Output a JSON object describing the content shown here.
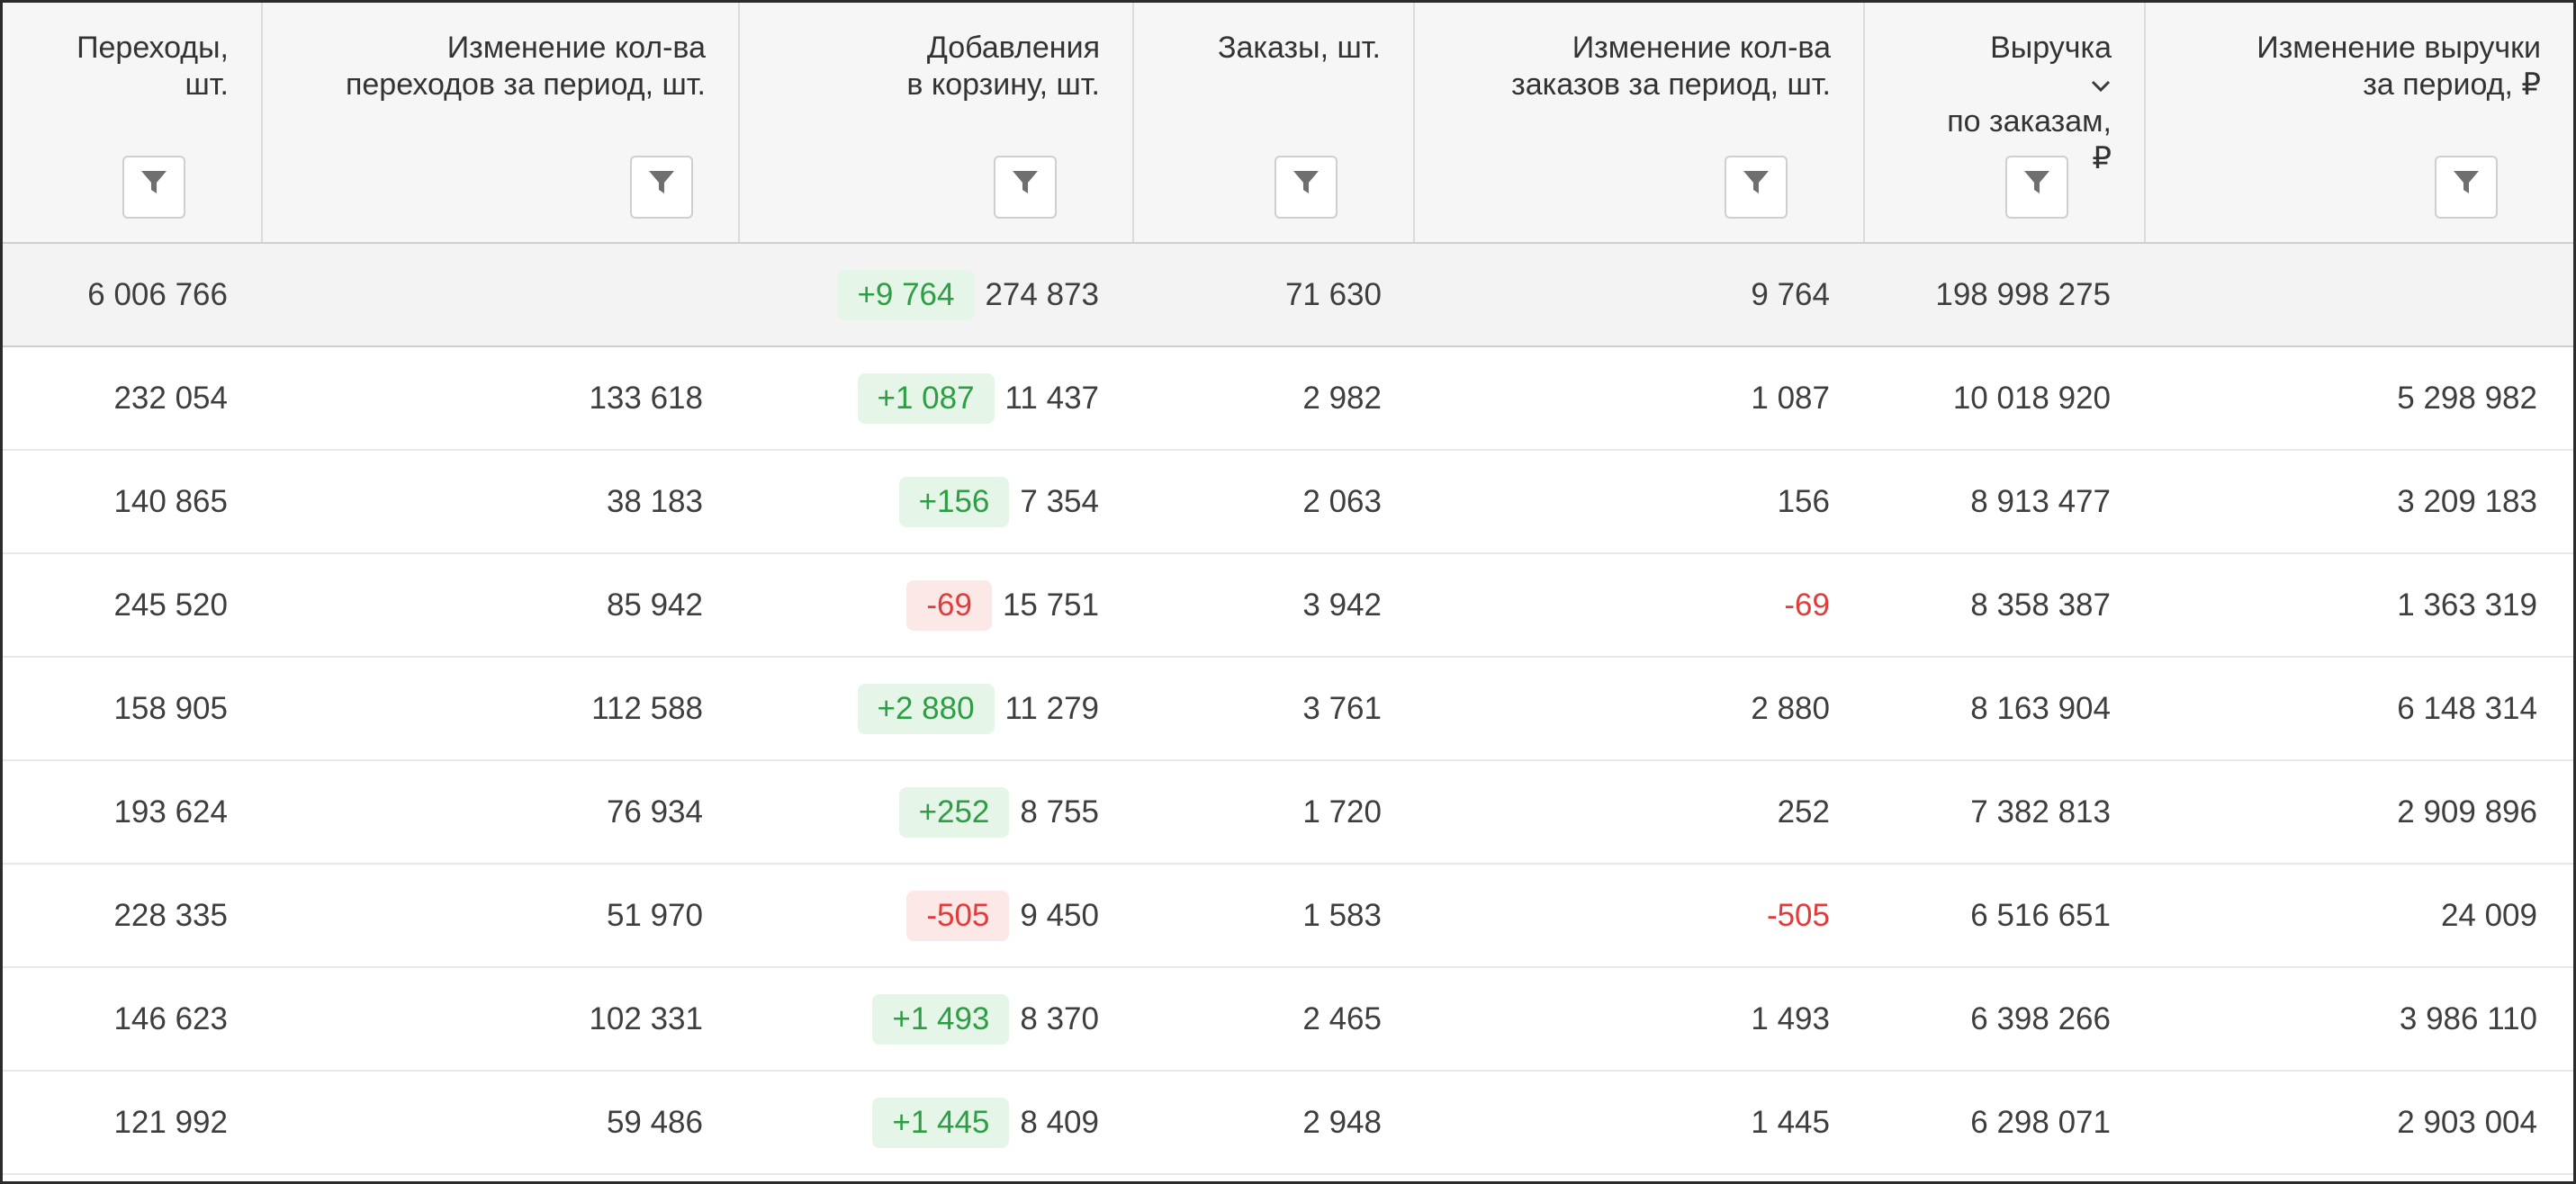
{
  "columns": [
    {
      "key": "visits",
      "lines": [
        "Переходы,",
        "шт."
      ],
      "sorted": false
    },
    {
      "key": "visits_change",
      "lines": [
        "Изменение кол-ва",
        "переходов за период, шт."
      ],
      "sorted": false
    },
    {
      "key": "cart_adds",
      "lines": [
        "Добавления",
        "в корзину, шт."
      ],
      "sorted": false
    },
    {
      "key": "orders",
      "lines": [
        "Заказы, шт."
      ],
      "sorted": false
    },
    {
      "key": "orders_change",
      "lines": [
        "Изменение кол-ва",
        "заказов за период, шт."
      ],
      "sorted": false
    },
    {
      "key": "revenue",
      "lines": [
        "Выручка",
        "по заказам,",
        "₽"
      ],
      "sorted": true
    },
    {
      "key": "revenue_change",
      "lines": [
        "Изменение выручки",
        "за период, ₽"
      ],
      "sorted": false
    }
  ],
  "icons": {
    "filter": "filter-icon",
    "sort": "chevron-down-icon"
  },
  "colors": {
    "positive": "#2e9e45",
    "positive_bg": "#e5f5e8",
    "negative": "#e23b3b",
    "negative_bg": "#fde8e8"
  },
  "total": {
    "visits": "6 006 766",
    "visits_change": "",
    "cart_badge": "+9 764",
    "cart_badge_type": "pos",
    "cart_adds": "274 873",
    "orders": "71 630",
    "orders_change": "9 764",
    "revenue": "198 998 275",
    "revenue_change": ""
  },
  "rows": [
    {
      "visits": "232 054",
      "visits_change": "133 618",
      "cart_badge": "+1 087",
      "cart_badge_type": "pos",
      "cart_adds": "11 437",
      "orders": "2 982",
      "orders_change": "1 087",
      "revenue": "10 018 920",
      "revenue_change": "5 298 982"
    },
    {
      "visits": "140 865",
      "visits_change": "38 183",
      "cart_badge": "+156",
      "cart_badge_type": "pos",
      "cart_adds": "7 354",
      "orders": "2 063",
      "orders_change": "156",
      "revenue": "8 913 477",
      "revenue_change": "3 209 183"
    },
    {
      "visits": "245 520",
      "visits_change": "85 942",
      "cart_badge": "-69",
      "cart_badge_type": "neg",
      "cart_adds": "15 751",
      "orders": "3 942",
      "orders_change": "-69",
      "revenue": "8 358 387",
      "revenue_change": "1 363 319"
    },
    {
      "visits": "158 905",
      "visits_change": "112 588",
      "cart_badge": "+2 880",
      "cart_badge_type": "pos",
      "cart_adds": "11 279",
      "orders": "3 761",
      "orders_change": "2 880",
      "revenue": "8 163 904",
      "revenue_change": "6 148 314"
    },
    {
      "visits": "193 624",
      "visits_change": "76 934",
      "cart_badge": "+252",
      "cart_badge_type": "pos",
      "cart_adds": "8 755",
      "orders": "1 720",
      "orders_change": "252",
      "revenue": "7 382 813",
      "revenue_change": "2 909 896"
    },
    {
      "visits": "228 335",
      "visits_change": "51 970",
      "cart_badge": "-505",
      "cart_badge_type": "neg",
      "cart_adds": "9 450",
      "orders": "1 583",
      "orders_change": "-505",
      "revenue": "6 516 651",
      "revenue_change": "24 009"
    },
    {
      "visits": "146 623",
      "visits_change": "102 331",
      "cart_badge": "+1 493",
      "cart_badge_type": "pos",
      "cart_adds": "8 370",
      "orders": "2 465",
      "orders_change": "1 493",
      "revenue": "6 398 266",
      "revenue_change": "3 986 110"
    },
    {
      "visits": "121 992",
      "visits_change": "59 486",
      "cart_badge": "+1 445",
      "cart_badge_type": "pos",
      "cart_adds": "8 409",
      "orders": "2 948",
      "orders_change": "1 445",
      "revenue": "6 298 071",
      "revenue_change": "2 903 004"
    }
  ]
}
